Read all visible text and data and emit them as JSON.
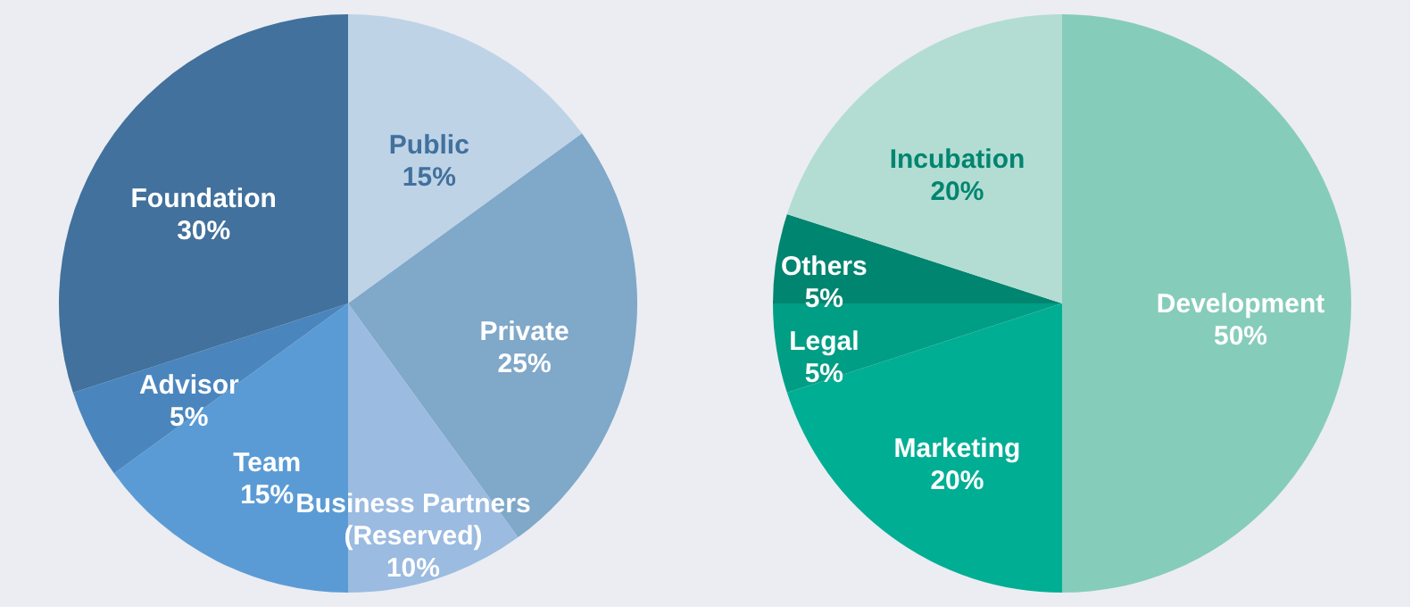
{
  "chart_data": [
    {
      "type": "pie",
      "categories": [
        "Public",
        "Private",
        "Business Partners (Reserved)",
        "Team",
        "Advisor",
        "Foundation"
      ],
      "values": [
        15,
        25,
        10,
        15,
        5,
        30
      ],
      "value_labels": [
        "15%",
        "25%",
        "10%",
        "15%",
        "5%",
        "30%"
      ],
      "colors": [
        "#bfd3e7",
        "#7fa8c9",
        "#9bbbe0",
        "#5b9bd5",
        "#4a86bd",
        "#41719c"
      ],
      "legend": false
    },
    {
      "type": "pie",
      "categories": [
        "Development",
        "Marketing",
        "Legal",
        "Others",
        "Incubation"
      ],
      "values": [
        50,
        20,
        5,
        5,
        20
      ],
      "value_labels": [
        "50%",
        "20%",
        "5%",
        "5%",
        "20%"
      ],
      "colors": [
        "#86ccba",
        "#00ae94",
        "#009e84",
        "#008570",
        "#b3ddd3"
      ],
      "legend": false
    }
  ]
}
